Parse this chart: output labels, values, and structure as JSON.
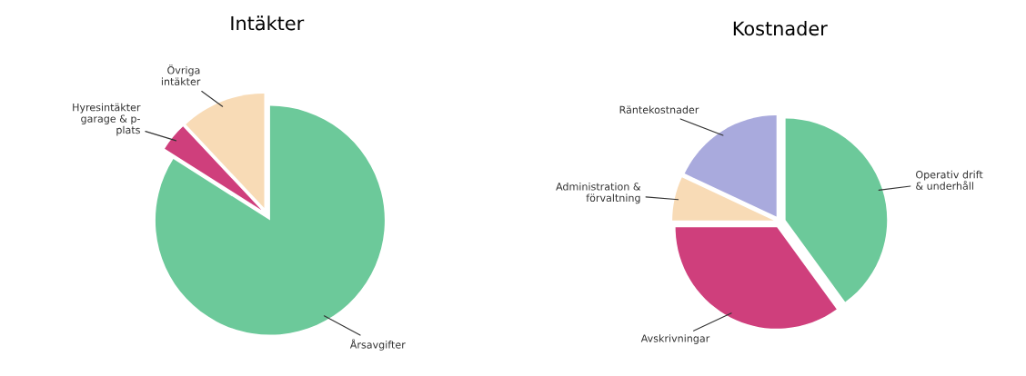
{
  "chart_data": [
    {
      "type": "pie",
      "title": "Intäkter",
      "categories": [
        "Årsavgifter",
        "Hyresintäkter\ngarage & p-\nplats",
        "Övriga\nintäkter"
      ],
      "values": [
        84,
        4,
        12
      ],
      "colors": [
        "#6cc99a",
        "#cf3f7c",
        "#f8dbb6"
      ]
    },
    {
      "type": "pie",
      "title": "Kostnader",
      "categories": [
        "Operativ drift\n& underhåll",
        "Avskrivningar",
        "Administration &\nförvaltning",
        "Räntekostnader"
      ],
      "values": [
        40,
        35,
        7,
        18
      ],
      "colors": [
        "#6cc99a",
        "#cf3f7c",
        "#f8dbb6",
        "#a9aadd"
      ]
    }
  ]
}
